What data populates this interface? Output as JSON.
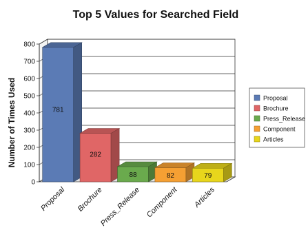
{
  "chart_data": {
    "type": "bar",
    "title": "Top 5 Values for Searched Field",
    "xlabel": "",
    "ylabel": "Number of Times Used",
    "categories": [
      "Proposal",
      "Brochure",
      "Press_Release",
      "Component",
      "Articles"
    ],
    "values": [
      781,
      282,
      88,
      82,
      79
    ],
    "ylim": [
      0,
      800
    ],
    "yticks": [
      0,
      100,
      200,
      300,
      400,
      500,
      600,
      700,
      800
    ],
    "grid": true,
    "legend": "right",
    "colors": [
      "#5b7bb5",
      "#e06666",
      "#6aaa4d",
      "#f5a033",
      "#e8d61c"
    ]
  }
}
